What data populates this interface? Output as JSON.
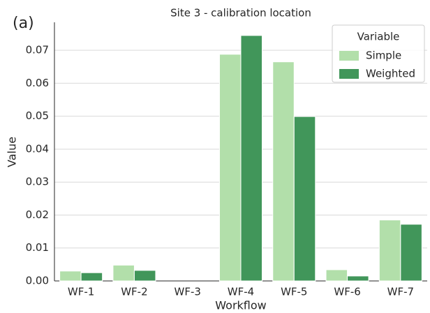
{
  "chart_data": {
    "type": "bar",
    "panel_label": "(a)",
    "title": "Site 3 - calibration location",
    "x_label": "Workflow",
    "y_label": "Value",
    "categories": [
      "WF-1",
      "WF-2",
      "WF-3",
      "WF-4",
      "WF-5",
      "WF-6",
      "WF-7"
    ],
    "series": [
      {
        "name": "Simple",
        "color": "#b2dfaa",
        "values": [
          0.003,
          0.0048,
          0,
          0.0688,
          0.0665,
          0.0034,
          0.0185
        ]
      },
      {
        "name": "Weighted",
        "color": "#41965a",
        "values": [
          0.0025,
          0.0032,
          0,
          0.0745,
          0.0499,
          0.0015,
          0.0172
        ]
      }
    ],
    "legend_title": "Variable",
    "legend": "upper right",
    "ylim": [
      0,
      0.0785
    ],
    "yticks": [
      {
        "value": 0,
        "label": "0.00"
      },
      {
        "value": 0.01,
        "label": "0.01"
      },
      {
        "value": 0.02,
        "label": "0.02"
      },
      {
        "value": 0.03,
        "label": "0.03"
      },
      {
        "value": 0.04,
        "label": "0.04"
      },
      {
        "value": 0.05,
        "label": "0.05"
      },
      {
        "value": 0.06,
        "label": "0.06"
      },
      {
        "value": 0.07,
        "label": "0.07"
      }
    ],
    "grid": true
  }
}
